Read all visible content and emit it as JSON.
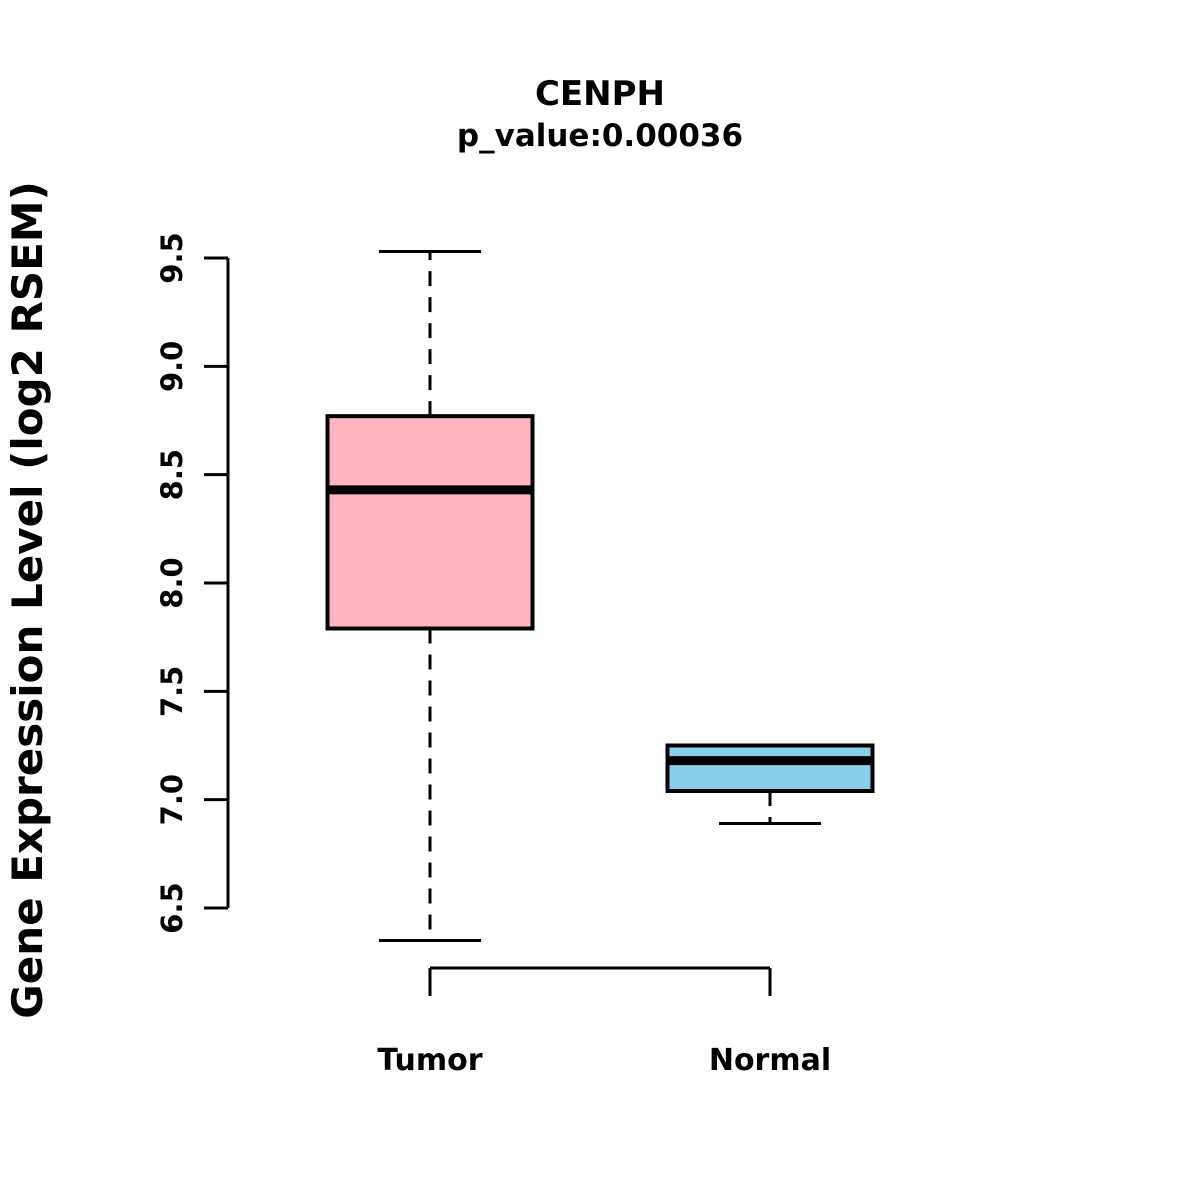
{
  "chart_data": {
    "type": "boxplot",
    "title": "CENPH",
    "subtitle": "p_value:0.00036",
    "ylabel": "Gene Expression Level (log2 RSEM)",
    "xlabel": "",
    "ylim": [
      6.5,
      9.5
    ],
    "grid": false,
    "yticks": [
      {
        "value": 6.5,
        "label": "6.5"
      },
      {
        "value": 7.0,
        "label": "7.0"
      },
      {
        "value": 7.5,
        "label": "7.5"
      },
      {
        "value": 8.0,
        "label": "8.0"
      },
      {
        "value": 8.5,
        "label": "8.5"
      },
      {
        "value": 9.0,
        "label": "9.0"
      },
      {
        "value": 9.5,
        "label": "9.5"
      }
    ],
    "groups": [
      {
        "label": "Tumor",
        "color": "#FFB6C1",
        "stats": {
          "min": 6.35,
          "q1": 7.79,
          "median": 8.43,
          "q3": 8.77,
          "max": 9.53
        }
      },
      {
        "label": "Normal",
        "color": "#87CEEB",
        "stats": {
          "min": 6.89,
          "q1": 7.04,
          "median": 7.18,
          "q3": 7.25,
          "max": 7.25
        }
      }
    ],
    "colors": {
      "box_border": "#000000",
      "median_line": "#000000",
      "axis": "#000000"
    }
  }
}
